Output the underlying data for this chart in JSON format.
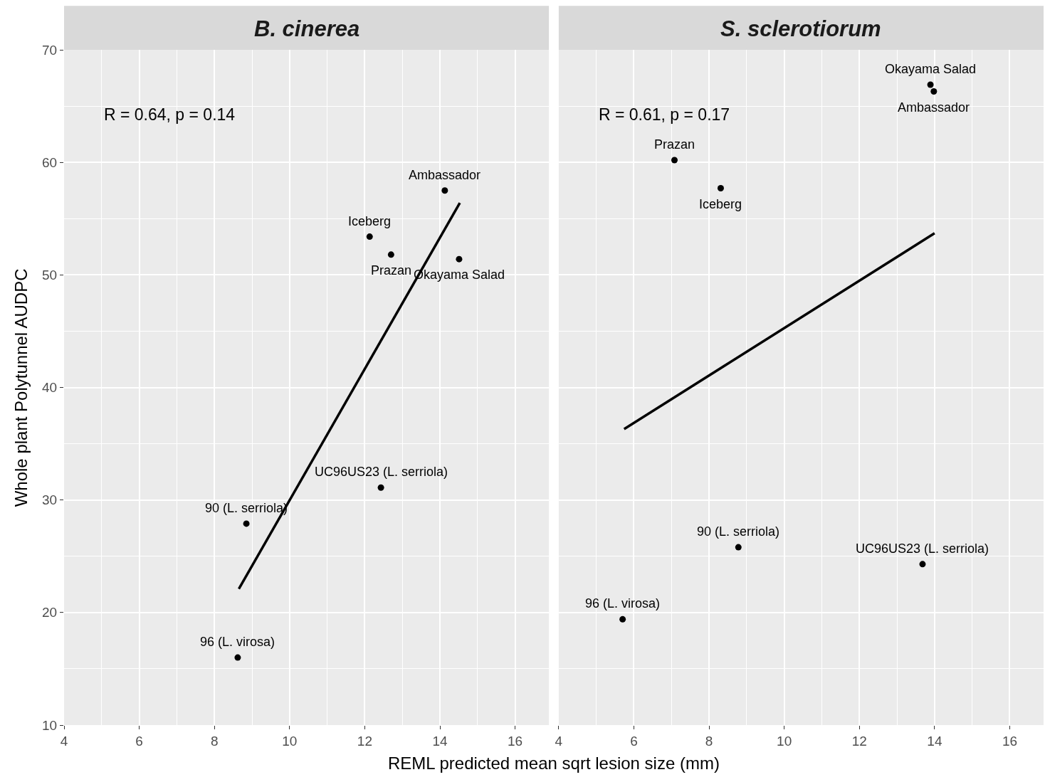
{
  "chart_data": [
    {
      "type": "scatter",
      "title": "B. cinerea",
      "ylabel": "Whole plant Polytunnel AUDPC",
      "xlabel": "REML predicted mean sqrt lesion size (mm)",
      "xlim": [
        4,
        16.9
      ],
      "ylim": [
        10,
        70
      ],
      "xticks": [
        4,
        6,
        8,
        10,
        12,
        14,
        16
      ],
      "yticks": [
        10,
        20,
        30,
        40,
        50,
        60,
        70
      ],
      "grid": true,
      "marker": "circle",
      "series": [
        {
          "color": "#000000",
          "x": [
            14.13,
            12.13,
            12.7,
            14.51,
            12.43,
            8.85,
            8.62
          ],
          "values": [
            57.5,
            53.4,
            51.8,
            51.4,
            31.1,
            27.9,
            16.0
          ]
        },
        {
          "type": "line",
          "marker": "none",
          "color": "#000000",
          "x": [
            8.65,
            14.53
          ],
          "values": [
            22.1,
            56.4
          ]
        }
      ],
      "annotations": [
        "R = 0.64, p = 0.14",
        {
          "text": "Ambassador",
          "x": 14.13,
          "y": 57.5
        },
        {
          "text": "Iceberg",
          "x": 12.13,
          "y": 53.4
        },
        {
          "text": "Prazan",
          "x": 12.7,
          "y": 51.8
        },
        {
          "text": "Okayama Salad",
          "x": 14.51,
          "y": 51.4
        },
        {
          "text": "UC96US23 (L. serriola)",
          "x": 12.43,
          "y": 31.1
        },
        {
          "text": "90 (L. serriola)",
          "x": 8.85,
          "y": 27.9
        },
        {
          "text": "96 (L. virosa)",
          "x": 8.62,
          "y": 16.0
        }
      ]
    },
    {
      "type": "scatter",
      "title": "S. sclerotiorum",
      "xlim": [
        4,
        16.9
      ],
      "ylim": [
        10,
        70
      ],
      "xticks": [
        4,
        6,
        8,
        10,
        12,
        14,
        16
      ],
      "yticks": [
        10,
        20,
        30,
        40,
        50,
        60,
        70
      ],
      "grid": true,
      "marker": "circle",
      "tick_labels": "x",
      "series": [
        {
          "color": "#000000",
          "x": [
            13.89,
            13.98,
            7.08,
            8.31,
            8.78,
            13.68,
            5.7
          ],
          "values": [
            66.9,
            66.3,
            60.2,
            57.7,
            25.8,
            24.3,
            19.4
          ]
        },
        {
          "type": "line",
          "marker": "none",
          "color": "#000000",
          "x": [
            5.74,
            14.0
          ],
          "values": [
            36.3,
            53.7
          ]
        }
      ],
      "annotations": [
        "R = 0.61, p = 0.17",
        {
          "text": "Okayama Salad",
          "x": 13.89,
          "y": 66.9
        },
        {
          "text": "Ambassador",
          "x": 13.98,
          "y": 66.3
        },
        {
          "text": "Prazan",
          "x": 7.08,
          "y": 60.2
        },
        {
          "text": "Iceberg",
          "x": 8.31,
          "y": 57.7
        },
        {
          "text": "90 (L. serriola)",
          "x": 8.78,
          "y": 25.8
        },
        {
          "text": "UC96US23 (L. serriola)",
          "x": 13.68,
          "y": 24.3
        },
        {
          "text": "96 (L. virosa)",
          "x": 5.7,
          "y": 19.4
        }
      ]
    }
  ]
}
